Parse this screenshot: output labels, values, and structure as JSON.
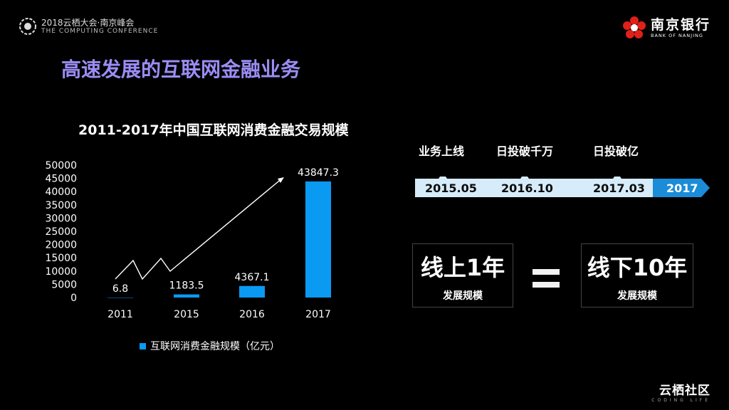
{
  "header": {
    "conference_line1": "2018云栖大会·南京峰会",
    "conference_line2": "THE COMPUTING CONFERENCE",
    "bank_name": "南京银行",
    "bank_name_en": "BANK OF NANJING"
  },
  "page_title": "高速发展的互联网金融业务",
  "chart_data": {
    "type": "bar",
    "title": "2011-2017年中国互联网消费金融交易规模",
    "categories": [
      "2011",
      "2015",
      "2016",
      "2017"
    ],
    "series": [
      {
        "name": "互联网消费金融规模（亿元）",
        "values": [
          6.8,
          1183.5,
          4367.1,
          43847.3
        ]
      }
    ],
    "data_labels": [
      "6.8",
      "1183.5",
      "4367.1",
      "43847.3"
    ],
    "y_ticks": [
      "50000",
      "45000",
      "40000",
      "35000",
      "30000",
      "25000",
      "20000",
      "15000",
      "10000",
      "5000",
      "0"
    ],
    "ylim": [
      0,
      50000
    ],
    "xlabel": "",
    "ylabel": "",
    "grid": false,
    "legend_position": "bottom",
    "bar_color": "#0a9af2"
  },
  "timeline": {
    "events": [
      {
        "label": "业务上线",
        "date": "2015.05"
      },
      {
        "label": "日投破千万",
        "date": "2016.10"
      },
      {
        "label": "日投破亿",
        "date": "2017.03"
      }
    ],
    "end_label": "2017",
    "bar_color": "#d6ecfa",
    "end_color": "#1a8cd8"
  },
  "comparison": {
    "left_big": "线上1年",
    "left_small": "发展规模",
    "right_big": "线下10年",
    "right_small": "发展规模"
  },
  "footer": {
    "brand": "云栖社区",
    "brand_sub": "CODING LIFE"
  },
  "colors": {
    "title_purple": "#9a8df4",
    "bank_red": "#e0201a",
    "accent_blue": "#0a9af2"
  }
}
